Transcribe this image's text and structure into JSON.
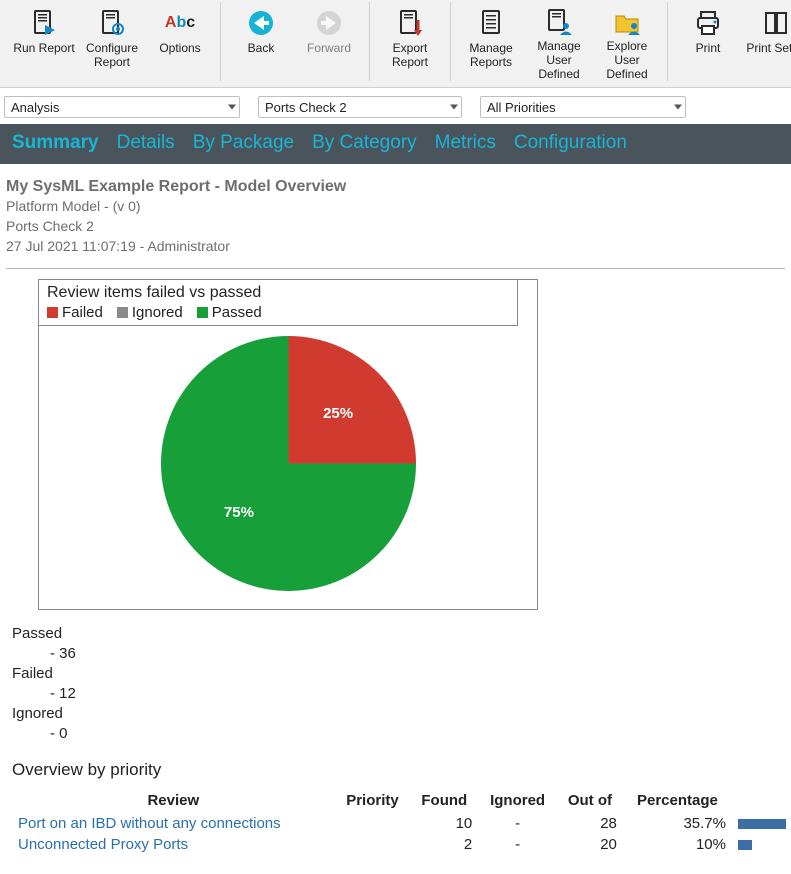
{
  "toolbar": {
    "groups": [
      {
        "buttons": [
          {
            "id": "run-report",
            "label": "Run Report",
            "icon": "doc-play"
          },
          {
            "id": "configure",
            "label": "Configure Report",
            "icon": "doc-gear"
          },
          {
            "id": "options",
            "label": "Options",
            "icon": "abc"
          }
        ]
      },
      {
        "buttons": [
          {
            "id": "back",
            "label": "Back",
            "icon": "arrow-left",
            "accent": true
          },
          {
            "id": "forward",
            "label": "Forward",
            "icon": "arrow-right",
            "disabled": true
          }
        ]
      },
      {
        "buttons": [
          {
            "id": "export",
            "label": "Export Report",
            "icon": "doc-down"
          }
        ]
      },
      {
        "buttons": [
          {
            "id": "manage-rpt",
            "label": "Manage Reports",
            "icon": "doc-lines"
          },
          {
            "id": "manage-usr",
            "label": "Manage User Defined",
            "icon": "doc-user"
          },
          {
            "id": "explore",
            "label": "Explore User Defined",
            "icon": "folder-user"
          }
        ]
      },
      {
        "buttons": [
          {
            "id": "print",
            "label": "Print",
            "icon": "printer"
          },
          {
            "id": "print-setup",
            "label": "Print Setup",
            "icon": "page-setup"
          }
        ]
      }
    ]
  },
  "dropdowns": {
    "scope": "Analysis",
    "check": "Ports Check 2",
    "priority": "All Priorities"
  },
  "tabs": [
    "Summary",
    "Details",
    "By Package",
    "By Category",
    "Metrics",
    "Configuration"
  ],
  "active_tab": "Summary",
  "report_header": {
    "title": "My SysML Example Report - Model Overview",
    "model": "Platform Model - (v 0)",
    "check": "Ports Check 2",
    "stamp": "27 Jul 2021 11:07:19 - Administrator"
  },
  "chart": {
    "title": "Review items failed vs passed",
    "legend": [
      {
        "label": "Failed",
        "color": "#d13a2e"
      },
      {
        "label": "Ignored",
        "color": "#8a8a8a"
      },
      {
        "label": "Passed",
        "color": "#17a03a"
      }
    ],
    "slices": [
      {
        "label": "25%",
        "value": 25,
        "color": "#d13a2e"
      },
      {
        "label": "75%",
        "value": 75,
        "color": "#17a03a"
      }
    ],
    "size": 255,
    "label_color": "#ffffff",
    "label_fontsize": 15
  },
  "counts": {
    "passed": {
      "label": "Passed",
      "value": "- 36"
    },
    "failed": {
      "label": "Failed",
      "value": "- 12"
    },
    "ignored": {
      "label": "Ignored",
      "value": "- 0"
    }
  },
  "overview": {
    "title": "Overview by priority",
    "columns": [
      "Review",
      "Priority",
      "Found",
      "Ignored",
      "Out of",
      "Percentage",
      ""
    ],
    "col_align": [
      "left",
      "center",
      "right",
      "center",
      "right",
      "right",
      "left"
    ],
    "rows": [
      {
        "review": "Port on an IBD without any connections",
        "priority": "",
        "found": "10",
        "ignored": "-",
        "outof": "28",
        "pct": "35.7%",
        "bar": 48
      },
      {
        "review": "Unconnected Proxy Ports",
        "priority": "",
        "found": "2",
        "ignored": "-",
        "outof": "20",
        "pct": "10%",
        "bar": 14
      }
    ],
    "bar_color": "#3a6ea5"
  }
}
